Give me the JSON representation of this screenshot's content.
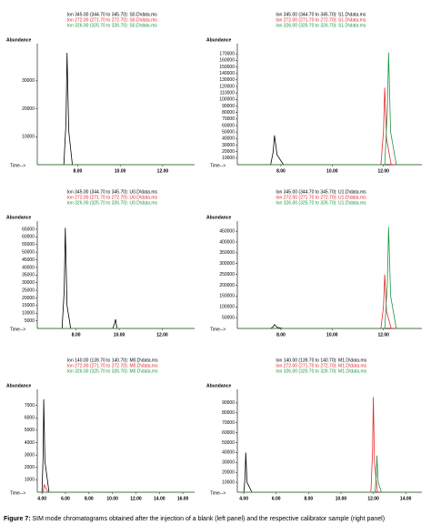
{
  "chart_data": [
    {
      "type": "line",
      "x_label": "Time-->",
      "y_label": "Abundance",
      "xlim": [
        6.1,
        13.5
      ],
      "ylim": [
        0,
        42000
      ],
      "xticks": [
        {
          "value": 8,
          "label": "8.00"
        },
        {
          "value": 10,
          "label": "10.00"
        },
        {
          "value": 12,
          "label": "12.00"
        }
      ],
      "yticks": [
        10000,
        20000,
        30000
      ],
      "series": [
        {
          "name": "Ion 345.00 (344.70 to 345.70): S0.D\\data.ms",
          "color": "#000000",
          "x": [
            6.1,
            7.35,
            7.45,
            7.5,
            7.58,
            7.75,
            13.5
          ],
          "values": [
            0,
            0,
            15000,
            40000,
            12000,
            0,
            0
          ]
        },
        {
          "name": "Ion 272.00 (271.70 to 272.70): S0.D\\data.ms",
          "color": "#e8262b",
          "x": [
            6.1,
            13.5
          ],
          "values": [
            0,
            0
          ]
        },
        {
          "name": "Ion 326.00 (325.70 to 326.70): S0.D\\data.ms",
          "color": "#1a9641",
          "x": [
            6.1,
            13.5
          ],
          "values": [
            0,
            0
          ]
        }
      ]
    },
    {
      "type": "line",
      "x_label": "Time-->",
      "y_label": "Abundance",
      "xlim": [
        6.3,
        13.5
      ],
      "ylim": [
        0,
        180000
      ],
      "xticks": [
        {
          "value": 8,
          "label": "8.00"
        },
        {
          "value": 10,
          "label": "10.00"
        },
        {
          "value": 12,
          "label": "12.00"
        }
      ],
      "yticks": [
        10000,
        20000,
        30000,
        40000,
        50000,
        60000,
        70000,
        80000,
        90000,
        100000,
        110000,
        120000,
        130000,
        140000,
        150000,
        160000,
        170000
      ],
      "series": [
        {
          "name": "Ion 345.00 (344.70 to 345.70): S1.D\\data.ms",
          "color": "#000000",
          "x": [
            6.3,
            7.6,
            7.7,
            7.75,
            7.85,
            8.1,
            13.5
          ],
          "values": [
            0,
            0,
            20000,
            45000,
            15000,
            0,
            0
          ]
        },
        {
          "name": "Ion 272.00 (271.70 to 272.70): S1.D\\data.ms",
          "color": "#e8262b",
          "x": [
            6.3,
            11.9,
            12.0,
            12.05,
            12.12,
            12.3,
            13.5
          ],
          "values": [
            0,
            0,
            50000,
            118000,
            40000,
            0,
            0
          ]
        },
        {
          "name": "Ion 326.00 (325.70 to 326.70): S1.D\\data.ms",
          "color": "#1a9641",
          "x": [
            6.3,
            12.05,
            12.15,
            12.2,
            12.28,
            12.5,
            13.5
          ],
          "values": [
            0,
            0,
            80000,
            172000,
            50000,
            0,
            0
          ]
        }
      ]
    },
    {
      "type": "line",
      "x_label": "Time-->",
      "y_label": "Abundance",
      "xlim": [
        6.2,
        13.5
      ],
      "ylim": [
        0,
        68000
      ],
      "xticks": [
        {
          "value": 8,
          "label": "8.00"
        },
        {
          "value": 10,
          "label": "10.00"
        },
        {
          "value": 12,
          "label": "12.00"
        }
      ],
      "yticks": [
        5000,
        10000,
        15000,
        20000,
        25000,
        30000,
        35000,
        40000,
        45000,
        50000,
        55000,
        60000,
        65000
      ],
      "series": [
        {
          "name": "Ion 345.00 (344.70 to 345.70): U0.D\\data.ms",
          "color": "#000000",
          "x": [
            6.2,
            7.35,
            7.45,
            7.5,
            7.58,
            7.75,
            9.7,
            9.78,
            9.83,
            9.9,
            13.5
          ],
          "values": [
            0,
            0,
            25000,
            66000,
            15000,
            0,
            0,
            3000,
            6000,
            0,
            0
          ]
        },
        {
          "name": "Ion 272.00 (271.70 to 272.70): U0.D\\data.ms",
          "color": "#e8262b",
          "x": [
            6.2,
            13.5
          ],
          "values": [
            0,
            0
          ]
        },
        {
          "name": "Ion 326.00 (325.70 to 326.70): U0.D\\data.ms",
          "color": "#1a9641",
          "x": [
            6.2,
            13.5
          ],
          "values": [
            0,
            0
          ]
        }
      ]
    },
    {
      "type": "line",
      "x_label": "Time-->",
      "y_label": "Abundance",
      "xlim": [
        6.3,
        13.5
      ],
      "ylim": [
        0,
        480000
      ],
      "xticks": [
        {
          "value": 8,
          "label": "8.00"
        },
        {
          "value": 10,
          "label": "10.00"
        },
        {
          "value": 12,
          "label": "12.00"
        }
      ],
      "yticks": [
        50000,
        100000,
        150000,
        200000,
        250000,
        300000,
        350000,
        400000,
        450000
      ],
      "series": [
        {
          "name": "Ion 345.00 (344.70 to 345.70): U1.D\\data.ms",
          "color": "#000000",
          "x": [
            6.3,
            7.6,
            7.7,
            7.75,
            7.85,
            8.1,
            13.5
          ],
          "values": [
            0,
            0,
            8000,
            18000,
            5000,
            0,
            0
          ]
        },
        {
          "name": "Ion 272.00 (271.70 to 272.70): U1.D\\data.ms",
          "color": "#e8262b",
          "x": [
            6.3,
            11.9,
            12.0,
            12.05,
            12.12,
            12.3,
            13.5
          ],
          "values": [
            0,
            0,
            100000,
            250000,
            80000,
            0,
            0
          ]
        },
        {
          "name": "Ion 326.00 (325.70 to 326.70): U1.D\\data.ms",
          "color": "#1a9641",
          "x": [
            6.3,
            12.05,
            12.15,
            12.2,
            12.28,
            12.5,
            13.5
          ],
          "values": [
            0,
            0,
            200000,
            470000,
            150000,
            0,
            0
          ]
        }
      ]
    },
    {
      "type": "line",
      "x_label": "Time-->",
      "y_label": "Abundance",
      "xlim": [
        3.6,
        17.0
      ],
      "ylim": [
        0,
        8000
      ],
      "xticks": [
        {
          "value": 4,
          "label": "4.00"
        },
        {
          "value": 6,
          "label": "6.00"
        },
        {
          "value": 8,
          "label": "8.00"
        },
        {
          "value": 10,
          "label": "10.00"
        },
        {
          "value": 12,
          "label": "12.00"
        },
        {
          "value": 14,
          "label": "14.00"
        },
        {
          "value": 16,
          "label": "16.00"
        }
      ],
      "yticks": [
        1000,
        2000,
        3000,
        4000,
        5000,
        6000,
        7000
      ],
      "series": [
        {
          "name": "Ion 140.00 (139.70 to 140.70): M0.D\\data.ms",
          "color": "#000000",
          "x": [
            3.6,
            4.0,
            4.1,
            4.15,
            4.25,
            4.6,
            17.0
          ],
          "values": [
            0,
            0,
            3000,
            7500,
            2500,
            0,
            0
          ]
        },
        {
          "name": "Ion 272.00 (271.70 to 272.70): M0.D\\data.ms",
          "color": "#e8262b",
          "x": [
            3.6,
            4.1,
            4.2,
            4.5,
            17.0
          ],
          "values": [
            0,
            0,
            600,
            0,
            0
          ]
        },
        {
          "name": "Ion 326.00 (325.70 to 326.70): M0.D\\data.ms",
          "color": "#1a9641",
          "x": [
            3.6,
            17.0
          ],
          "values": [
            0,
            0
          ]
        }
      ]
    },
    {
      "type": "line",
      "x_label": "Time-->",
      "y_label": "Abundance",
      "xlim": [
        3.6,
        15.0
      ],
      "ylim": [
        0,
        100000
      ],
      "xticks": [
        {
          "value": 4,
          "label": "4.00"
        },
        {
          "value": 6,
          "label": "6.00"
        },
        {
          "value": 8,
          "label": "8.00"
        },
        {
          "value": 10,
          "label": "10.00"
        },
        {
          "value": 12,
          "label": "12.00"
        },
        {
          "value": 14,
          "label": "14.00"
        }
      ],
      "yticks": [
        10000,
        20000,
        30000,
        40000,
        50000,
        60000,
        70000,
        80000,
        90000
      ],
      "series": [
        {
          "name": "Ion 140.00 (139.70 to 140.70): M1.D\\data.ms",
          "color": "#000000",
          "x": [
            3.6,
            4.0,
            4.08,
            4.12,
            4.2,
            4.5,
            15.0
          ],
          "values": [
            0,
            0,
            15000,
            40000,
            10000,
            0,
            0
          ]
        },
        {
          "name": "Ion 272.00 (271.70 to 272.70): M1.D\\data.ms",
          "color": "#e8262b",
          "x": [
            3.6,
            11.85,
            11.95,
            12.0,
            12.07,
            12.25,
            15.0
          ],
          "values": [
            0,
            0,
            40000,
            96000,
            30000,
            0,
            0
          ]
        },
        {
          "name": "Ion 326.00 (325.70 to 326.70): M1.D\\data.ms",
          "color": "#1a9641",
          "x": [
            3.6,
            12.1,
            12.18,
            12.22,
            12.3,
            12.5,
            15.0
          ],
          "values": [
            0,
            0,
            15000,
            37000,
            10000,
            0,
            0
          ]
        }
      ]
    }
  ],
  "caption_label": "Figure 7:",
  "caption": "SIM mode chromatograms obtained after the injection of a blank (left panel) and the respective calibrator sample (right panel)"
}
